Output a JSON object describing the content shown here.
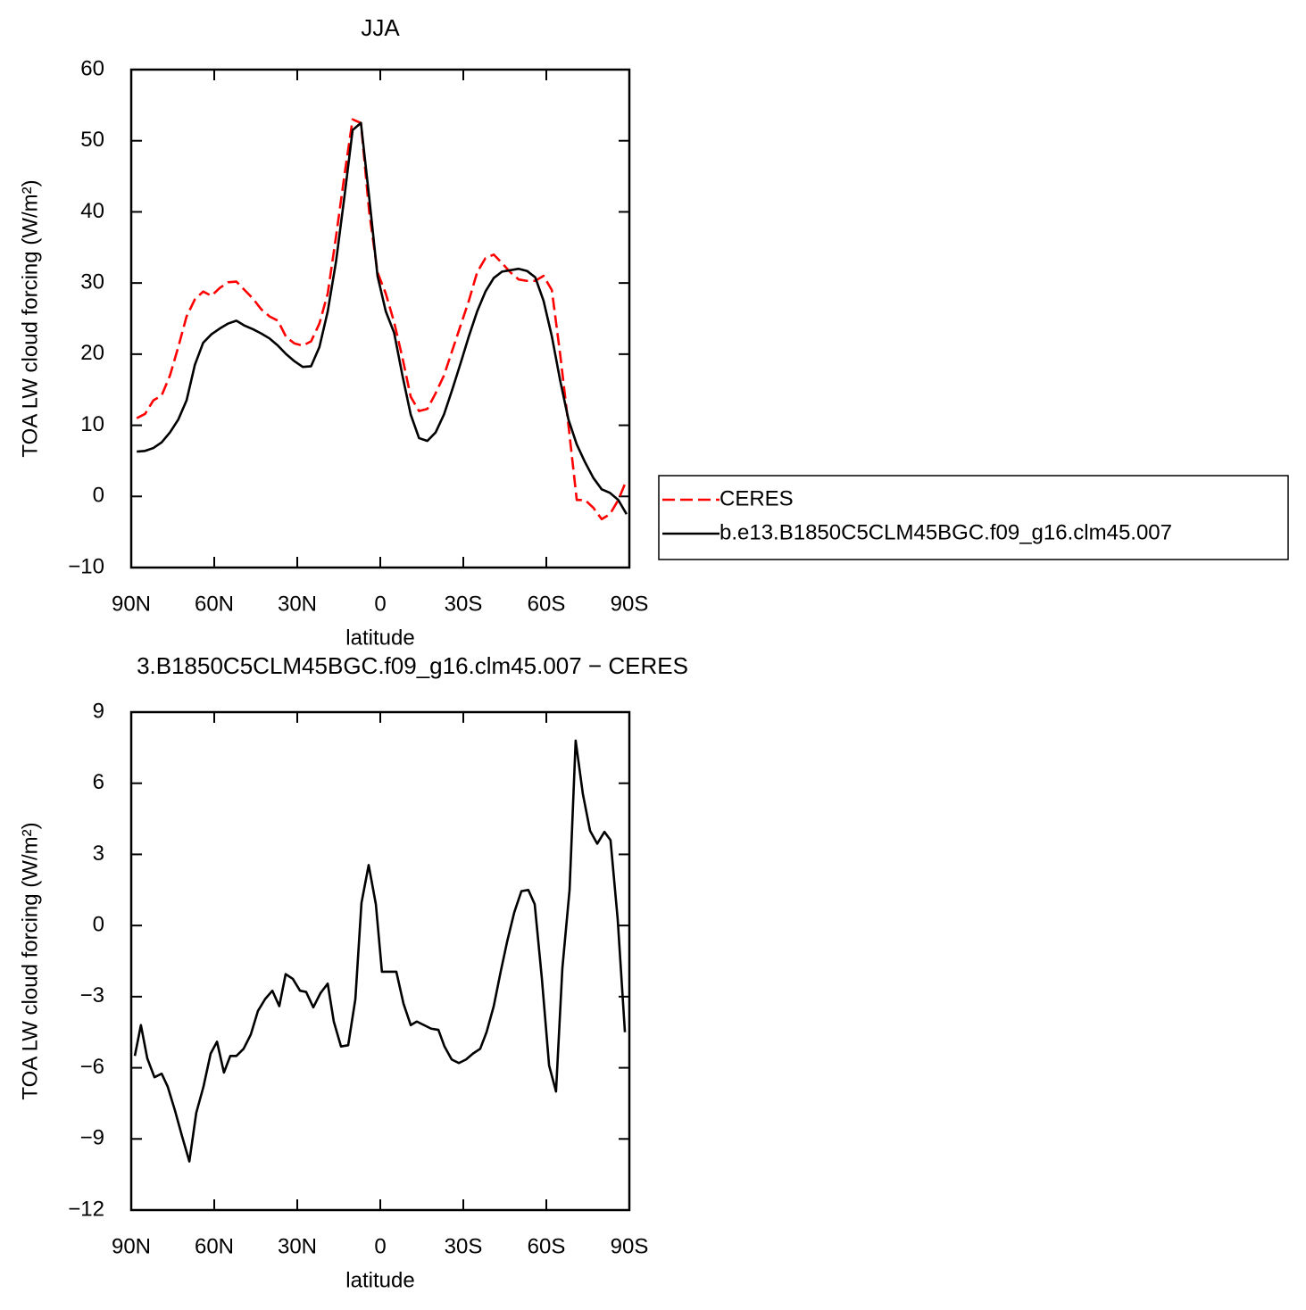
{
  "chart_data": [
    {
      "type": "line",
      "title": "JJA",
      "xlabel": "latitude",
      "ylabel": "TOA LW cloud forcing (W/m²)",
      "x": [
        88,
        85,
        82,
        79,
        76,
        73,
        70,
        67,
        64,
        61,
        58,
        55,
        52,
        49,
        46,
        43,
        40,
        37,
        34,
        31,
        28,
        25,
        22,
        19,
        16,
        13,
        10,
        7,
        4,
        1,
        -2,
        -5,
        -8,
        -11,
        -14,
        -17,
        -20,
        -23,
        -26,
        -29,
        -32,
        -35,
        -38,
        -41,
        -44,
        -47,
        -50,
        -53,
        -56,
        -59,
        -62,
        -65,
        -68,
        -71,
        -74,
        -77,
        -80,
        -83,
        -86,
        -89
      ],
      "xlim": [
        90,
        -90
      ],
      "xticks": [
        {
          "value": 90,
          "label": "90N"
        },
        {
          "value": 60,
          "label": "60N"
        },
        {
          "value": 30,
          "label": "30N"
        },
        0,
        {
          "value": -30,
          "label": "30S"
        },
        {
          "value": -60,
          "label": "60S"
        },
        {
          "value": -90,
          "label": "90S"
        }
      ],
      "ylim": [
        -10,
        60
      ],
      "yticks": [
        {
          "value": -10,
          "label": "−10"
        },
        0,
        10,
        20,
        30,
        40,
        50,
        60
      ],
      "legend": "right",
      "series": [
        {
          "name": "CERES",
          "color": "#ff0000",
          "dash": "dashed",
          "values": [
            11,
            11.6,
            13.5,
            14.2,
            17,
            21,
            25.3,
            27.7,
            28.8,
            28.2,
            29.3,
            30.1,
            30.2,
            29,
            27.8,
            26.3,
            25.3,
            24.7,
            22.4,
            21.5,
            21.2,
            21.8,
            24.3,
            28.5,
            36.5,
            45,
            53,
            52.5,
            40,
            31.5,
            28.5,
            24.5,
            19.5,
            14,
            12,
            12.3,
            14.5,
            17,
            20.5,
            24,
            27.5,
            31.5,
            33.5,
            34,
            32.8,
            31.5,
            30.5,
            30.3,
            30.3,
            31,
            29,
            20,
            10,
            -0.5,
            -0.5,
            -1.6,
            -3.2,
            -2.5,
            -0.5,
            2.3
          ]
        },
        {
          "name": "b.e13.B1850C5CLM45BGC.f09_g16.clm45.007",
          "color": "#000000",
          "values": [
            6.3,
            6.4,
            6.8,
            7.6,
            9,
            10.8,
            13.5,
            18.5,
            21.6,
            22.8,
            23.6,
            24.3,
            24.7,
            24,
            23.5,
            22.9,
            22.2,
            21.2,
            20,
            19,
            18.2,
            18.3,
            21,
            26,
            33,
            42,
            51.5,
            52.5,
            42,
            31,
            26,
            23,
            17,
            11.5,
            8.2,
            7.8,
            9,
            11.5,
            15,
            18.7,
            22.5,
            26,
            28.8,
            30.7,
            31.6,
            31.8,
            32,
            31.7,
            30.8,
            27.5,
            22.5,
            16.3,
            10.8,
            7.3,
            4.8,
            2.6,
            1,
            0.5,
            -0.5,
            -2.5
          ]
        }
      ]
    },
    {
      "type": "line",
      "title": "3.B1850C5CLM45BGC.f09_g16.clm45.007 − CERES",
      "xlabel": "latitude",
      "ylabel": "TOA LW cloud forcing (W/m²)",
      "x": [
        88.7,
        86.5,
        84.2,
        81.6,
        79.0,
        76.8,
        74.2,
        71.6,
        69.0,
        66.5,
        63.9,
        61.3,
        59.0,
        56.5,
        54.2,
        52.0,
        49.4,
        46.8,
        44.2,
        41.6,
        39.0,
        36.5,
        34.2,
        31.6,
        29.0,
        26.8,
        24.2,
        21.6,
        19.0,
        16.8,
        14.2,
        11.6,
        9.0,
        6.8,
        4.2,
        1.6,
        -0.6,
        -3.2,
        -5.8,
        -8.4,
        -11.0,
        -13.2,
        -15.8,
        -18.4,
        -21.0,
        -23.2,
        -25.8,
        -28.4,
        -31.0,
        -33.5,
        -36.1,
        -38.4,
        -41.0,
        -43.5,
        -45.8,
        -48.4,
        -51.0,
        -53.5,
        -55.8,
        -58.4,
        -61.0,
        -63.5,
        -65.8,
        -68.4,
        -70.6,
        -73.2,
        -75.8,
        -78.4,
        -81.0,
        -83.2,
        -85.8,
        -88.4
      ],
      "xlim": [
        90,
        -90
      ],
      "xticks": [
        {
          "value": 90,
          "label": "90N"
        },
        {
          "value": 60,
          "label": "60N"
        },
        {
          "value": 30,
          "label": "30N"
        },
        0,
        {
          "value": -30,
          "label": "30S"
        },
        {
          "value": -60,
          "label": "60S"
        },
        {
          "value": -90,
          "label": "90S"
        }
      ],
      "ylim": [
        -12,
        9
      ],
      "yticks": [
        {
          "value": -12,
          "label": "−12"
        },
        {
          "value": -9,
          "label": "−9"
        },
        {
          "value": -6,
          "label": "−6"
        },
        {
          "value": -3,
          "label": "−3"
        },
        0,
        3,
        6,
        9
      ],
      "series": [
        {
          "color": "#000000",
          "values": [
            -5.5,
            -4.2,
            -5.6,
            -6.4,
            -6.25,
            -6.8,
            -7.8,
            -8.9,
            -9.95,
            -7.9,
            -6.8,
            -5.4,
            -4.9,
            -6.2,
            -5.5,
            -5.5,
            -5.2,
            -4.6,
            -3.6,
            -3.1,
            -2.75,
            -3.4,
            -2.05,
            -2.25,
            -2.75,
            -2.8,
            -3.45,
            -2.85,
            -2.45,
            -4.05,
            -5.1,
            -5.05,
            -3.1,
            0.95,
            2.55,
            0.9,
            -1.95,
            -1.95,
            -1.95,
            -3.3,
            -4.2,
            -4.05,
            -4.2,
            -4.35,
            -4.4,
            -5.1,
            -5.65,
            -5.8,
            -5.65,
            -5.4,
            -5.2,
            -4.5,
            -3.4,
            -1.95,
            -0.7,
            0.55,
            1.45,
            1.5,
            0.9,
            -2.25,
            -5.9,
            -7.0,
            -1.8,
            1.5,
            7.8,
            5.55,
            4.0,
            3.45,
            3.95,
            3.6,
            0.25,
            -4.5
          ]
        }
      ]
    }
  ]
}
